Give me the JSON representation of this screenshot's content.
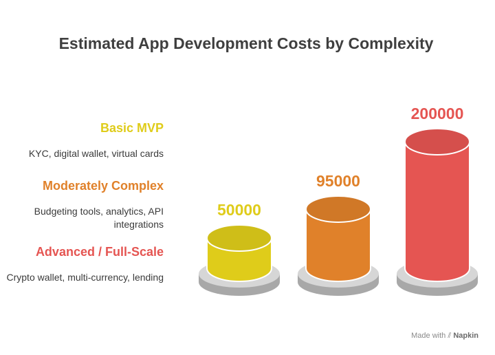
{
  "chart_data": {
    "type": "bar",
    "title": "Estimated App Development Costs by Complexity",
    "categories": [
      "Basic MVP",
      "Moderately Complex",
      "Advanced / Full-Scale"
    ],
    "descriptions": [
      "KYC, digital wallet, virtual cards",
      "Budgeting tools, analytics, API integrations",
      "Crypto wallet, multi-currency, lending"
    ],
    "values": [
      50000,
      95000,
      200000
    ],
    "colors": [
      "#dfcc1a",
      "#e0812a",
      "#e55552"
    ],
    "xlabel": "",
    "ylabel": "",
    "grid": false
  },
  "footer": {
    "made_with": "Made with",
    "brand": "Napkin"
  }
}
